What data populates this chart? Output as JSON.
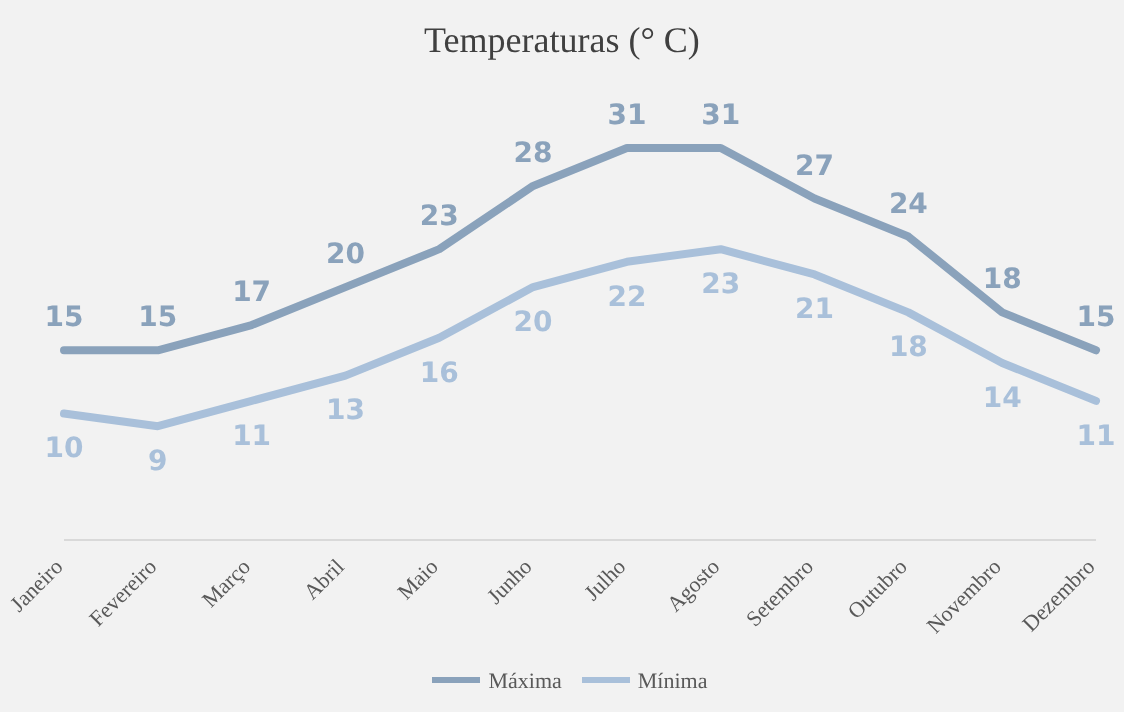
{
  "chart_data": {
    "type": "line",
    "title": "Temperaturas (° C)",
    "categories": [
      "Janeiro",
      "Fevereiro",
      "Março",
      "Abril",
      "Maio",
      "Junho",
      "Julho",
      "Agosto",
      "Setembro",
      "Outubro",
      "Novembro",
      "Dezembro"
    ],
    "series": [
      {
        "name": "Máxima",
        "color": "#8aa2bb",
        "values": [
          15,
          15,
          17,
          20,
          23,
          28,
          31,
          31,
          27,
          24,
          18,
          15
        ]
      },
      {
        "name": "Mínima",
        "color": "#a9c0da",
        "values": [
          10,
          9,
          11,
          13,
          16,
          20,
          22,
          23,
          21,
          18,
          14,
          11
        ]
      }
    ],
    "data_labels": true,
    "legend": "bottom",
    "marker": "none",
    "line_style": "solid"
  }
}
